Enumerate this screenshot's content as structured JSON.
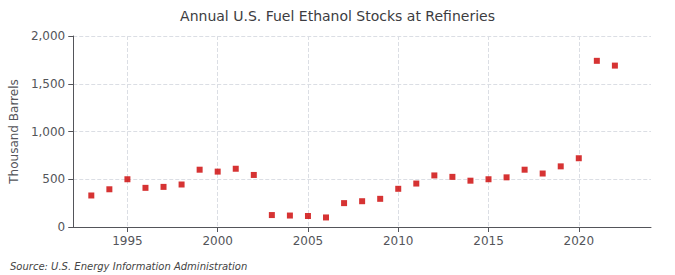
{
  "chart_data": {
    "type": "scatter",
    "title": "Annual U.S. Fuel Ethanol Stocks at Refineries",
    "ylabel": "Thousand Barrels",
    "annotations": [
      "Source: U.S. Energy Information Administration"
    ],
    "x": [
      1993,
      1994,
      1995,
      1996,
      1997,
      1998,
      1999,
      2000,
      2001,
      2002,
      2003,
      2004,
      2005,
      2006,
      2007,
      2008,
      2009,
      2010,
      2011,
      2012,
      2013,
      2014,
      2015,
      2016,
      2017,
      2018,
      2019,
      2020,
      2021,
      2022
    ],
    "values": [
      330,
      395,
      500,
      410,
      420,
      445,
      600,
      580,
      610,
      545,
      125,
      120,
      115,
      100,
      250,
      270,
      295,
      400,
      455,
      540,
      525,
      485,
      500,
      520,
      600,
      560,
      635,
      720,
      1740,
      1690
    ],
    "color": "#cc0000",
    "marker": "square",
    "xlim": [
      1992,
      2024
    ],
    "xticks": [
      1995,
      2000,
      2005,
      2010,
      2015,
      2020
    ],
    "ylim": [
      0,
      2000
    ],
    "yticks": [
      0,
      500,
      {
        "value": 1000,
        "label": "1,000"
      },
      {
        "value": 1500,
        "label": "1,500"
      },
      {
        "value": 2000,
        "label": "2,000"
      }
    ],
    "grid": true
  }
}
